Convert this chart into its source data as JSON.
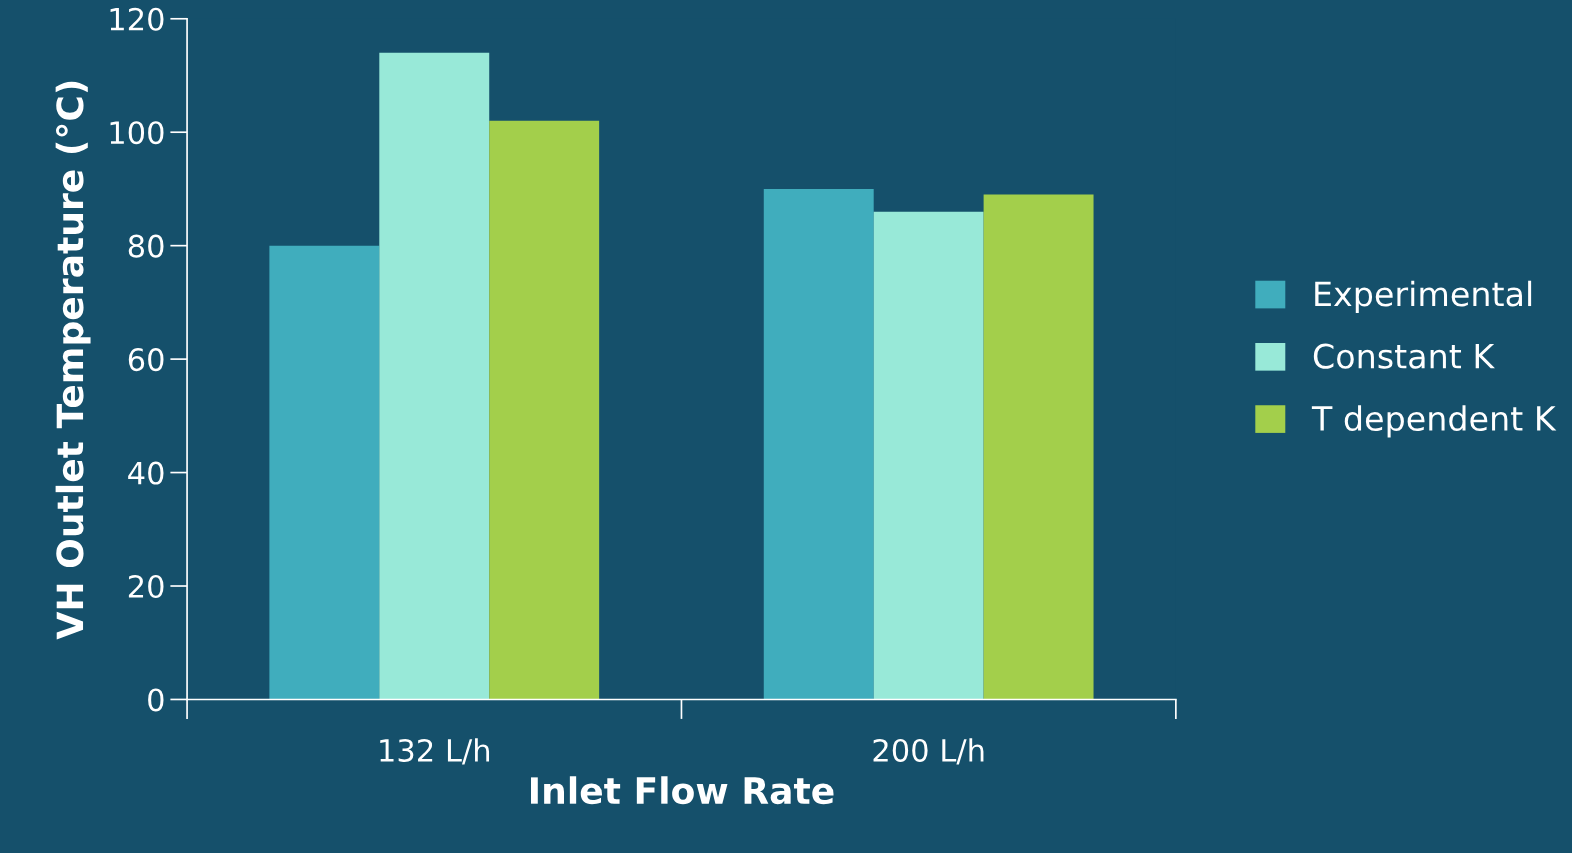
{
  "chart_data": {
    "type": "bar",
    "xlabel": "Inlet Flow Rate",
    "ylabel": "VH Outlet Temperature (°C)",
    "categories": [
      "132 L/h",
      "200 L/h"
    ],
    "series": [
      {
        "name": "Experimental",
        "color": "#40adbd",
        "values": [
          80,
          90
        ]
      },
      {
        "name": "Constant K",
        "color": "#98e9d8",
        "values": [
          114,
          86
        ]
      },
      {
        "name": "T dependent K",
        "color": "#a3cf4b",
        "values": [
          102,
          89
        ]
      }
    ],
    "ylim": [
      0,
      120
    ],
    "yticks": [
      0,
      20,
      40,
      60,
      80,
      100,
      120
    ],
    "grid": false,
    "legend": "right"
  }
}
